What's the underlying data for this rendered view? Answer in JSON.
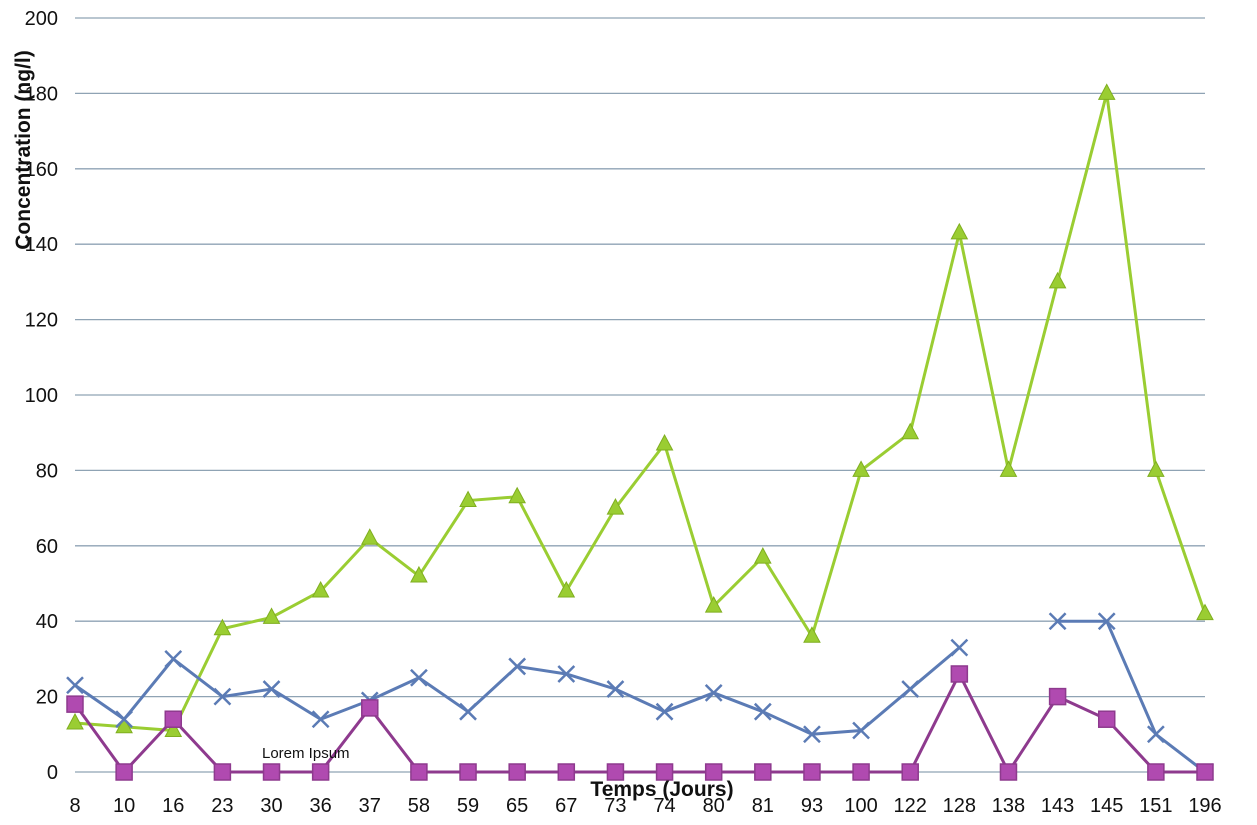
{
  "chart_data": {
    "type": "line",
    "xlabel": "Temps (Jours)",
    "ylabel": "Concentration (ng/l)",
    "ylim": [
      0,
      200
    ],
    "yticks": [
      "0",
      "20",
      "40",
      "60",
      "80",
      "100",
      "120",
      "140",
      "160",
      "180",
      "200"
    ],
    "grid": true,
    "categories": [
      "8",
      "10",
      "16",
      "23",
      "30",
      "36",
      "37",
      "58",
      "59",
      "65",
      "67",
      "73",
      "74",
      "80",
      "81",
      "93",
      "100",
      "122",
      "128",
      "138",
      "143",
      "145",
      "151",
      "196"
    ],
    "annotation": "Lorem Ipsum",
    "series": [
      {
        "marker": "triangle",
        "color": "#9acd32",
        "values": [
          13,
          12,
          11,
          38,
          41,
          48,
          62,
          52,
          72,
          73,
          48,
          70,
          87,
          44,
          57,
          36,
          80,
          90,
          143,
          80,
          130,
          180,
          80,
          42
        ]
      },
      {
        "marker": "x",
        "color": "#5b7bb5",
        "values": [
          23,
          14,
          30,
          20,
          22,
          14,
          19,
          25,
          16,
          28,
          26,
          22,
          16,
          21,
          16,
          10,
          11,
          22,
          33,
          null,
          40,
          40,
          10,
          0
        ]
      },
      {
        "marker": "square",
        "color": "#8e3a8e",
        "values": [
          18,
          0,
          14,
          0,
          0,
          0,
          17,
          0,
          0,
          0,
          0,
          0,
          0,
          0,
          0,
          0,
          0,
          0,
          26,
          0,
          20,
          14,
          0,
          0
        ]
      }
    ]
  }
}
